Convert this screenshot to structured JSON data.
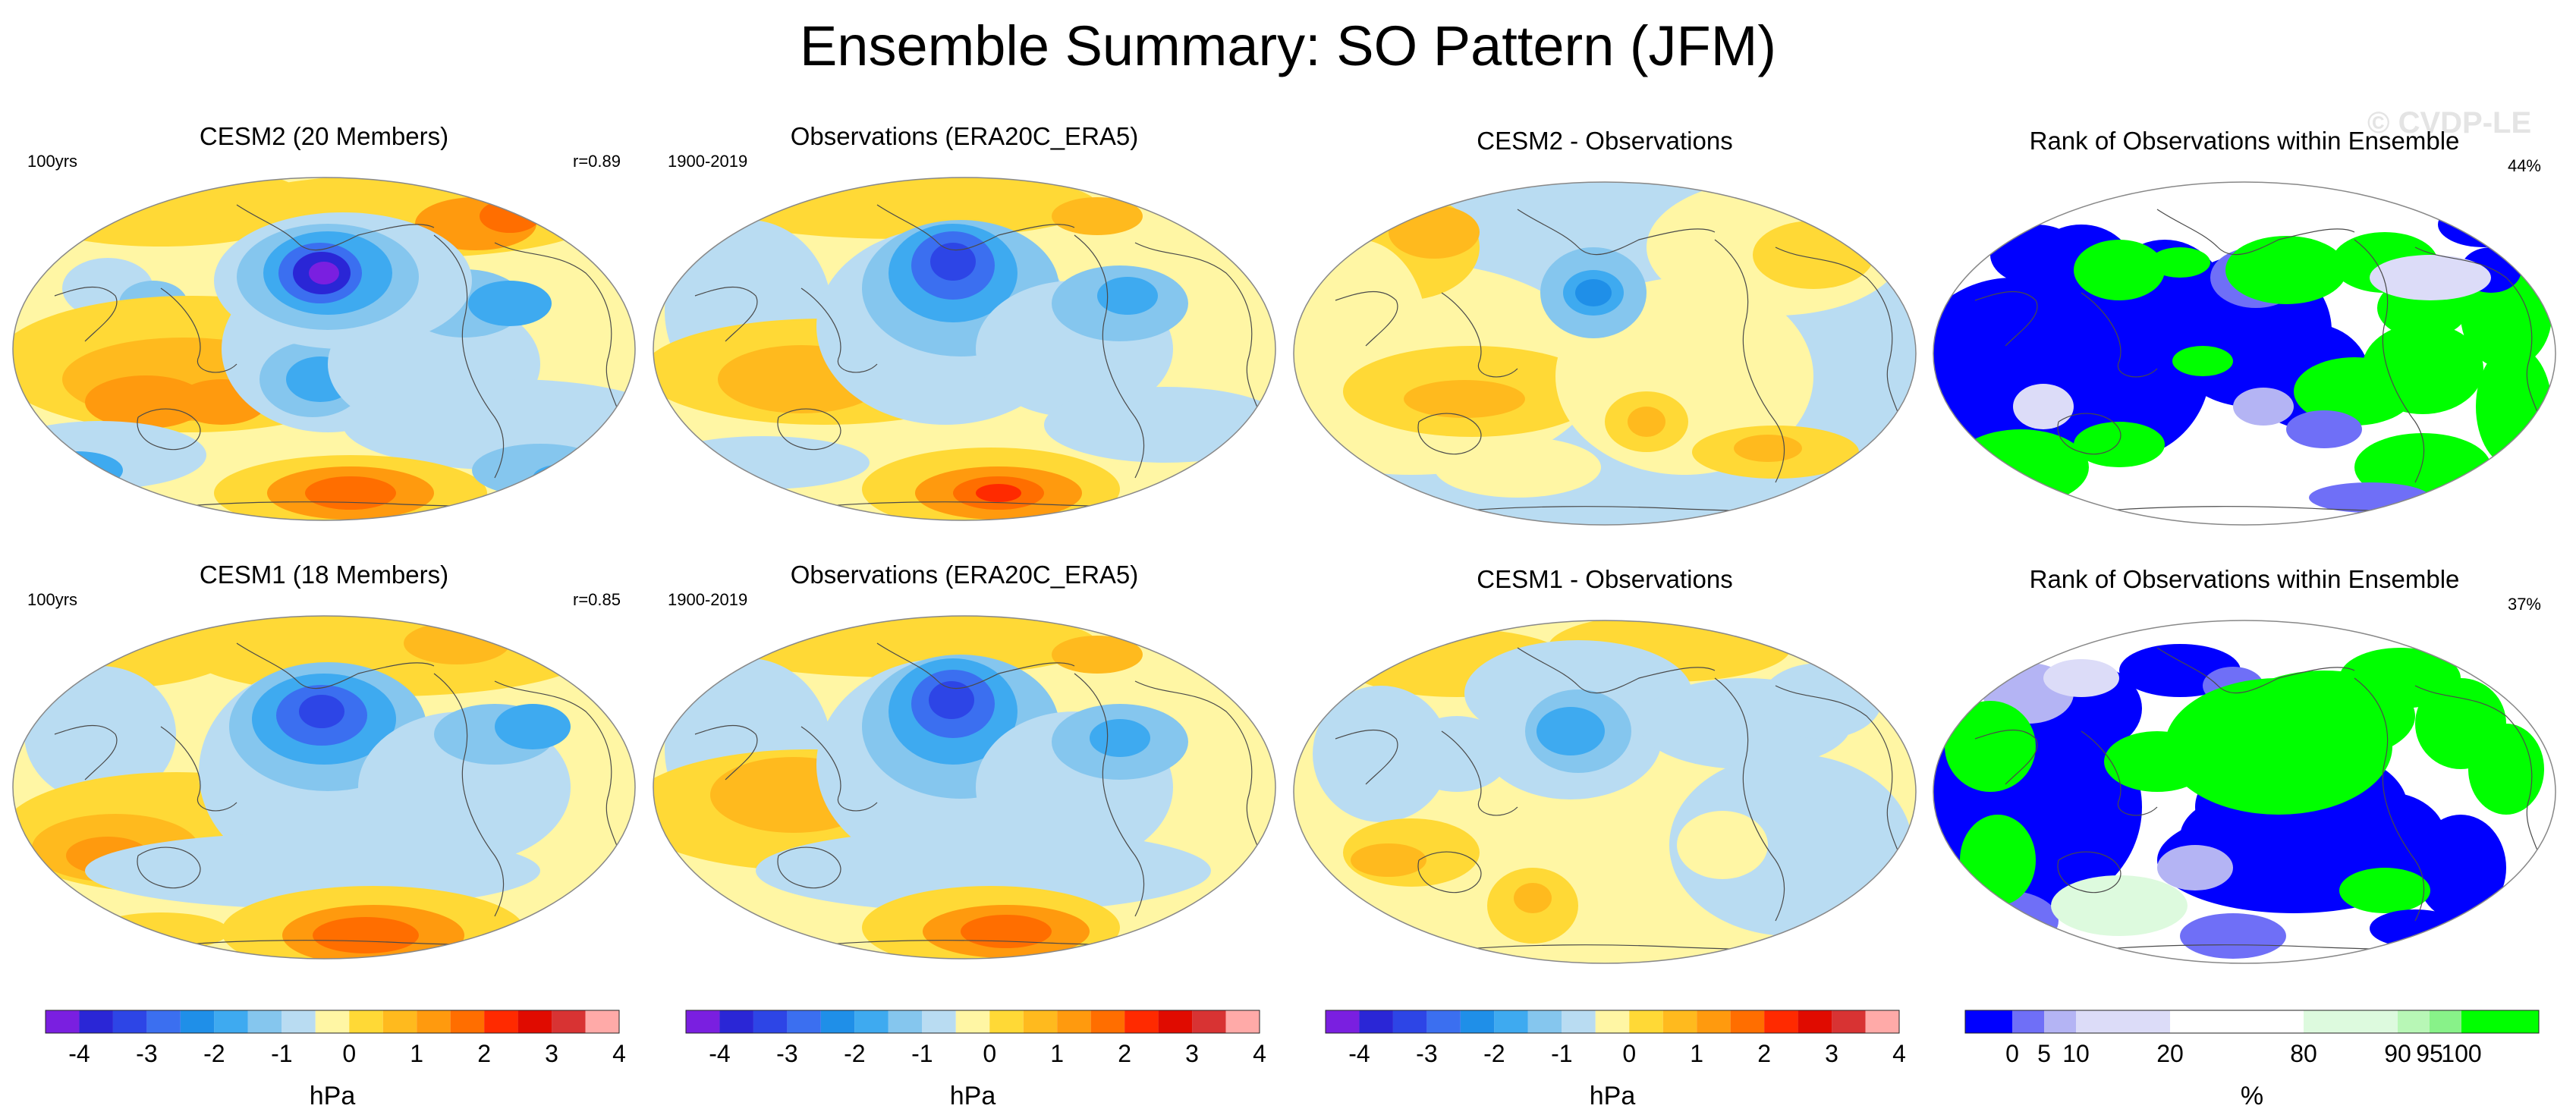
{
  "title": "Ensemble Summary: SO Pattern (JFM)",
  "watermark": "© CVDP-LE",
  "colors": {
    "pressure_scale": [
      "#7a1fe0",
      "#2a26d6",
      "#2d45e6",
      "#3b6ff0",
      "#1f8fe8",
      "#3eaaf0",
      "#85c6ee",
      "#b9dcf2",
      "#fff6a4",
      "#ffd936",
      "#ffba1e",
      "#ff9a0e",
      "#ff6e00",
      "#ff2a00",
      "#e00b00",
      "#d83333",
      "#ffaaa8"
    ],
    "rank_scale": [
      "#0000ff",
      "#6f6ff7",
      "#b4b4f4",
      "#dcdcf8",
      "#ffffff",
      "#ddfade",
      "#b8f7b6",
      "#88f289",
      "#00ff00"
    ]
  },
  "chart_data": [
    {
      "type": "heatmap",
      "title": "CESM2 (20 Members)",
      "left_label": "100yrs",
      "right_label": "r=0.89",
      "units": "hPa",
      "projection": "Robinson"
    },
    {
      "type": "heatmap",
      "title": "Observations (ERA20C_ERA5)",
      "left_label": "1900-2019",
      "right_label": "",
      "units": "hPa",
      "projection": "Robinson"
    },
    {
      "type": "heatmap",
      "title": "CESM2 - Observations",
      "left_label": "",
      "right_label": "",
      "units": "hPa",
      "projection": "Robinson"
    },
    {
      "type": "heatmap",
      "title": "Rank of Observations within Ensemble",
      "left_label": "",
      "right_label": "44%",
      "units": "%",
      "projection": "Robinson"
    },
    {
      "type": "heatmap",
      "title": "CESM1 (18 Members)",
      "left_label": "100yrs",
      "right_label": "r=0.85",
      "units": "hPa",
      "projection": "Robinson"
    },
    {
      "type": "heatmap",
      "title": "Observations (ERA20C_ERA5)",
      "left_label": "1900-2019",
      "right_label": "",
      "units": "hPa",
      "projection": "Robinson"
    },
    {
      "type": "heatmap",
      "title": "CESM1 - Observations",
      "left_label": "",
      "right_label": "",
      "units": "hPa",
      "projection": "Robinson"
    },
    {
      "type": "heatmap",
      "title": "Rank of Observations within Ensemble",
      "left_label": "",
      "right_label": "37%",
      "units": "%",
      "projection": "Robinson"
    }
  ],
  "colorbars": {
    "pressure": {
      "label": "hPa",
      "levels": [
        -4.5,
        -4,
        -3.5,
        -3,
        -2.5,
        -2,
        -1.5,
        -1,
        -0.5,
        0,
        0.5,
        1,
        1.5,
        2,
        2.5,
        3,
        3.5,
        4,
        4.5
      ],
      "tick_labels": [
        "-4",
        "-3",
        "-2",
        "-1",
        "0",
        "1",
        "2",
        "3",
        "4"
      ],
      "tick_values": [
        -4,
        -3,
        -2,
        -1,
        0,
        1,
        2,
        3,
        4
      ]
    },
    "rank": {
      "label": "%",
      "tick_labels": [
        "0",
        "5",
        "10",
        "20",
        "80",
        "90",
        "95",
        "100"
      ]
    }
  }
}
